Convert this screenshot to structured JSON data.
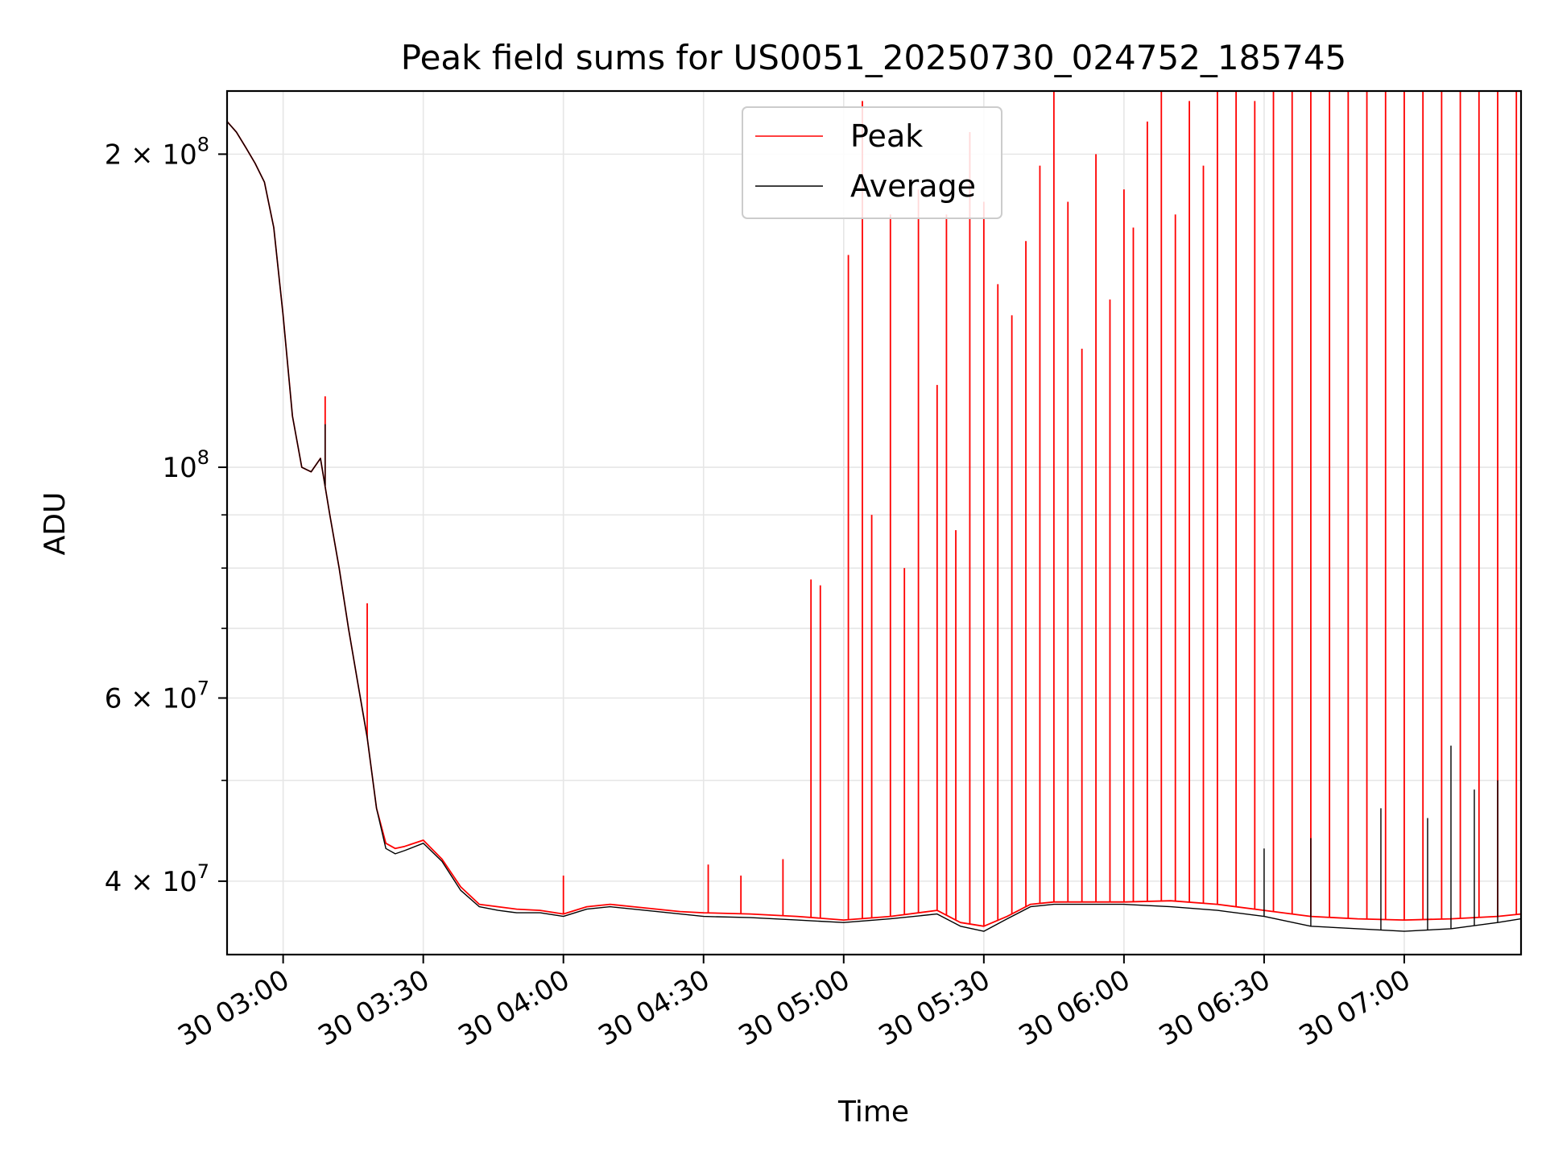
{
  "chart_data": {
    "type": "line",
    "title": "Peak field sums for US0051_20250730_024752_185745",
    "xlabel": "Time",
    "ylabel": "ADU",
    "x_is_time": true,
    "xlim": [
      "2025-07-30 02:48",
      "2025-07-30 07:25"
    ],
    "ylim": [
      34000000,
      230000000
    ],
    "yscale": "log",
    "grid": true,
    "legend_position": "upper-center",
    "x_ticks": [
      "30 03:00",
      "30 03:30",
      "30 04:00",
      "30 04:30",
      "30 05:00",
      "30 05:30",
      "30 06:00",
      "30 06:30",
      "30 07:00"
    ],
    "y_ticks": [
      {
        "value": 40000000,
        "label": "4 × 10",
        "exp": "7"
      },
      {
        "value": 60000000,
        "label": "6 × 10",
        "exp": "7"
      },
      {
        "value": 100000000,
        "label": "10",
        "exp": "8"
      },
      {
        "value": 200000000,
        "label": "2 × 10",
        "exp": "8"
      }
    ],
    "series": [
      {
        "name": "Peak",
        "color": "#ff0000",
        "x": [
          "02:48",
          "02:50",
          "02:52",
          "02:54",
          "02:56",
          "02:58",
          "03:00",
          "03:02",
          "03:04",
          "03:06",
          "03:08",
          "03:10",
          "03:12",
          "03:14",
          "03:16",
          "03:18",
          "03:20",
          "03:22",
          "03:24",
          "03:26",
          "03:30",
          "03:34",
          "03:38",
          "03:42",
          "03:46",
          "03:50",
          "03:55",
          "04:00",
          "04:05",
          "04:10",
          "04:15",
          "04:20",
          "04:25",
          "04:30",
          "04:40",
          "04:50",
          "05:00",
          "05:10",
          "05:20",
          "05:25",
          "05:30",
          "05:35",
          "05:40",
          "05:45",
          "05:50",
          "06:00",
          "06:10",
          "06:20",
          "06:30",
          "06:40",
          "06:50",
          "07:00",
          "07:10",
          "07:20",
          "07:25"
        ],
        "y": [
          215000000,
          210000000,
          203000000,
          196000000,
          188000000,
          170000000,
          140000000,
          112000000,
          100000000,
          99000000,
          102000000,
          90000000,
          80000000,
          70000000,
          62000000,
          55000000,
          47000000,
          43500000,
          43000000,
          43200000,
          43800000,
          42000000,
          39500000,
          38000000,
          37800000,
          37600000,
          37500000,
          37200000,
          37800000,
          38000000,
          37800000,
          37600000,
          37400000,
          37300000,
          37200000,
          37000000,
          36700000,
          37000000,
          37500000,
          36500000,
          36200000,
          37000000,
          38000000,
          38200000,
          38200000,
          38200000,
          38300000,
          38000000,
          37500000,
          37000000,
          36800000,
          36700000,
          36800000,
          37000000,
          37200000
        ],
        "spikes": [
          {
            "x": "03:09",
            "y": 117000000
          },
          {
            "x": "03:18",
            "y": 74000000
          },
          {
            "x": "04:00",
            "y": 40500000
          },
          {
            "x": "04:31",
            "y": 41500000
          },
          {
            "x": "04:38",
            "y": 40500000
          },
          {
            "x": "04:47",
            "y": 42000000
          },
          {
            "x": "04:53",
            "y": 78000000
          },
          {
            "x": "04:55",
            "y": 77000000
          },
          {
            "x": "05:01",
            "y": 160000000
          },
          {
            "x": "05:04",
            "y": 225000000
          },
          {
            "x": "05:06",
            "y": 90000000
          },
          {
            "x": "05:10",
            "y": 175000000
          },
          {
            "x": "05:13",
            "y": 80000000
          },
          {
            "x": "05:16",
            "y": 185000000
          },
          {
            "x": "05:20",
            "y": 120000000
          },
          {
            "x": "05:22",
            "y": 175000000
          },
          {
            "x": "05:24",
            "y": 87000000
          },
          {
            "x": "05:27",
            "y": 210000000
          },
          {
            "x": "05:30",
            "y": 180000000
          },
          {
            "x": "05:33",
            "y": 150000000
          },
          {
            "x": "05:36",
            "y": 140000000
          },
          {
            "x": "05:39",
            "y": 165000000
          },
          {
            "x": "05:42",
            "y": 195000000
          },
          {
            "x": "05:45",
            "y": 235000000
          },
          {
            "x": "05:48",
            "y": 180000000
          },
          {
            "x": "05:51",
            "y": 130000000
          },
          {
            "x": "05:54",
            "y": 200000000
          },
          {
            "x": "05:57",
            "y": 145000000
          },
          {
            "x": "06:00",
            "y": 185000000
          },
          {
            "x": "06:02",
            "y": 170000000
          },
          {
            "x": "06:05",
            "y": 215000000
          },
          {
            "x": "06:08",
            "y": 230000000
          },
          {
            "x": "06:11",
            "y": 175000000
          },
          {
            "x": "06:14",
            "y": 225000000
          },
          {
            "x": "06:17",
            "y": 195000000
          },
          {
            "x": "06:20",
            "y": 235000000
          },
          {
            "x": "06:24",
            "y": 230000000
          },
          {
            "x": "06:28",
            "y": 225000000
          },
          {
            "x": "06:32",
            "y": 235000000
          },
          {
            "x": "06:36",
            "y": 230000000
          },
          {
            "x": "06:40",
            "y": 235000000
          },
          {
            "x": "06:44",
            "y": 235000000
          },
          {
            "x": "06:48",
            "y": 230000000
          },
          {
            "x": "06:52",
            "y": 235000000
          },
          {
            "x": "06:56",
            "y": 235000000
          },
          {
            "x": "07:00",
            "y": 230000000
          },
          {
            "x": "07:04",
            "y": 235000000
          },
          {
            "x": "07:08",
            "y": 235000000
          },
          {
            "x": "07:12",
            "y": 235000000
          },
          {
            "x": "07:16",
            "y": 230000000
          },
          {
            "x": "07:20",
            "y": 235000000
          },
          {
            "x": "07:24",
            "y": 235000000
          }
        ]
      },
      {
        "name": "Average",
        "color": "#000000",
        "x": [
          "02:48",
          "02:50",
          "02:52",
          "02:54",
          "02:56",
          "02:58",
          "03:00",
          "03:02",
          "03:04",
          "03:06",
          "03:08",
          "03:10",
          "03:12",
          "03:14",
          "03:16",
          "03:18",
          "03:20",
          "03:22",
          "03:24",
          "03:26",
          "03:30",
          "03:34",
          "03:38",
          "03:42",
          "03:46",
          "03:50",
          "03:55",
          "04:00",
          "04:05",
          "04:10",
          "04:15",
          "04:20",
          "04:25",
          "04:30",
          "04:40",
          "04:50",
          "05:00",
          "05:10",
          "05:20",
          "05:25",
          "05:30",
          "05:35",
          "05:40",
          "05:45",
          "05:50",
          "06:00",
          "06:10",
          "06:20",
          "06:30",
          "06:40",
          "06:50",
          "07:00",
          "07:10",
          "07:20",
          "07:25"
        ],
        "y": [
          215000000,
          210000000,
          203000000,
          196000000,
          188000000,
          170000000,
          140000000,
          112000000,
          100000000,
          99000000,
          102000000,
          90000000,
          80000000,
          70000000,
          62000000,
          55000000,
          47000000,
          43000000,
          42500000,
          42800000,
          43500000,
          41800000,
          39200000,
          37800000,
          37500000,
          37300000,
          37300000,
          37000000,
          37600000,
          37800000,
          37600000,
          37400000,
          37200000,
          37000000,
          36900000,
          36700000,
          36500000,
          36800000,
          37200000,
          36200000,
          35800000,
          36800000,
          37800000,
          38000000,
          38000000,
          38000000,
          37800000,
          37500000,
          37000000,
          36200000,
          36000000,
          35800000,
          36000000,
          36500000,
          36800000
        ],
        "spikes": [
          {
            "x": "03:09",
            "y": 110000000
          },
          {
            "x": "06:30",
            "y": 43000000
          },
          {
            "x": "06:40",
            "y": 44000000
          },
          {
            "x": "06:55",
            "y": 47000000
          },
          {
            "x": "07:05",
            "y": 46000000
          },
          {
            "x": "07:10",
            "y": 54000000
          },
          {
            "x": "07:15",
            "y": 49000000
          },
          {
            "x": "07:20",
            "y": 50000000
          }
        ]
      }
    ]
  }
}
